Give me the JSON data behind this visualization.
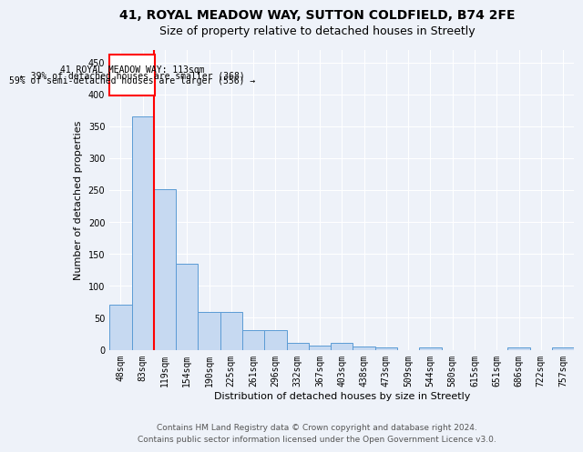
{
  "title": "41, ROYAL MEADOW WAY, SUTTON COLDFIELD, B74 2FE",
  "subtitle": "Size of property relative to detached houses in Streetly",
  "xlabel": "Distribution of detached houses by size in Streetly",
  "ylabel": "Number of detached properties",
  "categories": [
    "48sqm",
    "83sqm",
    "119sqm",
    "154sqm",
    "190sqm",
    "225sqm",
    "261sqm",
    "296sqm",
    "332sqm",
    "367sqm",
    "403sqm",
    "438sqm",
    "473sqm",
    "509sqm",
    "544sqm",
    "580sqm",
    "615sqm",
    "651sqm",
    "686sqm",
    "722sqm",
    "757sqm"
  ],
  "values": [
    70,
    365,
    252,
    135,
    59,
    59,
    30,
    30,
    10,
    7,
    10,
    5,
    4,
    0,
    4,
    0,
    0,
    0,
    3,
    0,
    3
  ],
  "bar_color": "#c6d9f1",
  "bar_edge_color": "#5b9bd5",
  "annotation_box_text_line1": "41 ROYAL MEADOW WAY: 113sqm",
  "annotation_box_text_line2": "← 39% of detached houses are smaller (368)",
  "annotation_box_text_line3": "59% of semi-detached houses are larger (556) →",
  "annotation_box_color": "white",
  "annotation_box_edge_color": "red",
  "property_line_color": "red",
  "ylim": [
    0,
    470
  ],
  "yticks": [
    0,
    50,
    100,
    150,
    200,
    250,
    300,
    350,
    400,
    450
  ],
  "footer1": "Contains HM Land Registry data © Crown copyright and database right 2024.",
  "footer2": "Contains public sector information licensed under the Open Government Licence v3.0.",
  "bg_color": "#eef2f9",
  "plot_bg_color": "#eef2f9",
  "title_fontsize": 10,
  "subtitle_fontsize": 9,
  "axis_label_fontsize": 8,
  "tick_fontsize": 7,
  "footer_fontsize": 6.5,
  "annotation_fontsize": 7
}
